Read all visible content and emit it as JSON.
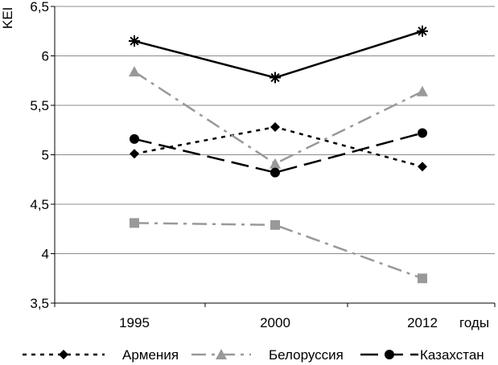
{
  "chart_data": {
    "type": "line",
    "title": "",
    "ylabel": "KEI",
    "xlabel": "годы",
    "categories": [
      "1995",
      "2000",
      "2012"
    ],
    "ylim": [
      3.5,
      6.5
    ],
    "yticks": [
      "3,5",
      "4",
      "4,5",
      "5",
      "5,5",
      "6",
      "6,5"
    ],
    "grid": "horizontal",
    "legend_position": "bottom",
    "series": [
      {
        "name": "Армения",
        "values": [
          5.01,
          5.28,
          4.88
        ],
        "color": "#000000",
        "dash": "dotted",
        "marker": "diamond"
      },
      {
        "name": "Белоруссия",
        "values": [
          5.84,
          4.91,
          5.64
        ],
        "color": "#999999",
        "dash": "dash-dot",
        "marker": "triangle"
      },
      {
        "name": "Казахстан",
        "values": [
          5.16,
          4.82,
          5.22
        ],
        "color": "#000000",
        "dash": "long-dash",
        "marker": "circle"
      },
      {
        "name": "",
        "values": [
          4.31,
          4.29,
          3.75
        ],
        "color": "#999999",
        "dash": "dash-dot",
        "marker": "square"
      },
      {
        "name": "",
        "values": [
          6.15,
          5.78,
          6.25
        ],
        "color": "#000000",
        "dash": "solid",
        "marker": "asterisk"
      }
    ]
  }
}
